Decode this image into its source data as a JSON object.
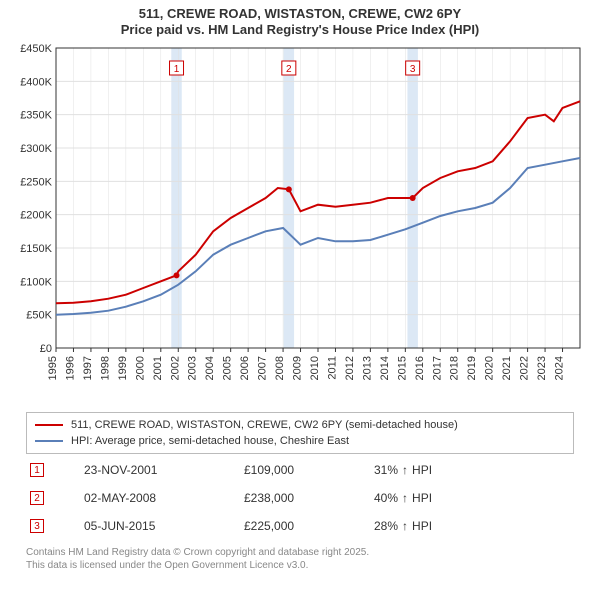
{
  "title_main": "511, CREWE ROAD, WISTASTON, CREWE, CW2 6PY",
  "title_sub": "Price paid vs. HM Land Registry's House Price Index (HPI)",
  "chart": {
    "type": "line",
    "background_color": "#ffffff",
    "grid_color": "#e0e0e0",
    "axis_color": "#333333",
    "tick_fontsize": 11,
    "xlim": [
      1995,
      2025
    ],
    "ylim": [
      0,
      450000
    ],
    "ytick_step": 50000,
    "ytick_labels": [
      "£0",
      "£50K",
      "£100K",
      "£150K",
      "£200K",
      "£250K",
      "£300K",
      "£350K",
      "£400K",
      "£450K"
    ],
    "xticks": [
      1995,
      1996,
      1997,
      1998,
      1999,
      2000,
      2001,
      2002,
      2003,
      2004,
      2005,
      2006,
      2007,
      2008,
      2009,
      2010,
      2011,
      2012,
      2013,
      2014,
      2015,
      2016,
      2017,
      2018,
      2019,
      2020,
      2021,
      2022,
      2023,
      2024
    ],
    "sale_band_color": "#dce8f5",
    "sale_bands": [
      2001.9,
      2008.33,
      2015.42
    ],
    "series": [
      {
        "name": "subject",
        "color": "#cc0000",
        "line_width": 2,
        "points": [
          [
            1995,
            67000
          ],
          [
            1996,
            68000
          ],
          [
            1997,
            70000
          ],
          [
            1998,
            74000
          ],
          [
            1999,
            80000
          ],
          [
            2000,
            90000
          ],
          [
            2001,
            100000
          ],
          [
            2001.9,
            109000
          ],
          [
            2002,
            115000
          ],
          [
            2003,
            140000
          ],
          [
            2004,
            175000
          ],
          [
            2005,
            195000
          ],
          [
            2006,
            210000
          ],
          [
            2007,
            225000
          ],
          [
            2007.7,
            240000
          ],
          [
            2008.33,
            238000
          ],
          [
            2008.8,
            215000
          ],
          [
            2009,
            205000
          ],
          [
            2010,
            215000
          ],
          [
            2011,
            212000
          ],
          [
            2012,
            215000
          ],
          [
            2013,
            218000
          ],
          [
            2014,
            225000
          ],
          [
            2015,
            225000
          ],
          [
            2015.42,
            225000
          ],
          [
            2016,
            240000
          ],
          [
            2017,
            255000
          ],
          [
            2018,
            265000
          ],
          [
            2019,
            270000
          ],
          [
            2020,
            280000
          ],
          [
            2021,
            310000
          ],
          [
            2022,
            345000
          ],
          [
            2023,
            350000
          ],
          [
            2023.5,
            340000
          ],
          [
            2024,
            360000
          ],
          [
            2025,
            370000
          ]
        ]
      },
      {
        "name": "hpi",
        "color": "#5a7fb8",
        "line_width": 2,
        "points": [
          [
            1995,
            50000
          ],
          [
            1996,
            51000
          ],
          [
            1997,
            53000
          ],
          [
            1998,
            56000
          ],
          [
            1999,
            62000
          ],
          [
            2000,
            70000
          ],
          [
            2001,
            80000
          ],
          [
            2002,
            95000
          ],
          [
            2003,
            115000
          ],
          [
            2004,
            140000
          ],
          [
            2005,
            155000
          ],
          [
            2006,
            165000
          ],
          [
            2007,
            175000
          ],
          [
            2008,
            180000
          ],
          [
            2008.8,
            160000
          ],
          [
            2009,
            155000
          ],
          [
            2010,
            165000
          ],
          [
            2011,
            160000
          ],
          [
            2012,
            160000
          ],
          [
            2013,
            162000
          ],
          [
            2014,
            170000
          ],
          [
            2015,
            178000
          ],
          [
            2016,
            188000
          ],
          [
            2017,
            198000
          ],
          [
            2018,
            205000
          ],
          [
            2019,
            210000
          ],
          [
            2020,
            218000
          ],
          [
            2021,
            240000
          ],
          [
            2022,
            270000
          ],
          [
            2023,
            275000
          ],
          [
            2024,
            280000
          ],
          [
            2025,
            285000
          ]
        ]
      }
    ],
    "markers": [
      {
        "n": "1",
        "x": 2001.9,
        "y": 109000
      },
      {
        "n": "2",
        "x": 2008.33,
        "y": 238000
      },
      {
        "n": "3",
        "x": 2015.42,
        "y": 225000
      }
    ]
  },
  "legend": {
    "items": [
      {
        "color": "#cc0000",
        "label": "511, CREWE ROAD, WISTASTON, CREWE, CW2 6PY (semi-detached house)"
      },
      {
        "color": "#5a7fb8",
        "label": "HPI: Average price, semi-detached house, Cheshire East"
      }
    ]
  },
  "sales": [
    {
      "n": "1",
      "date": "23-NOV-2001",
      "price": "£109,000",
      "delta": "31%",
      "arrow": "↑",
      "suffix": "HPI"
    },
    {
      "n": "2",
      "date": "02-MAY-2008",
      "price": "£238,000",
      "delta": "40%",
      "arrow": "↑",
      "suffix": "HPI"
    },
    {
      "n": "3",
      "date": "05-JUN-2015",
      "price": "£225,000",
      "delta": "28%",
      "arrow": "↑",
      "suffix": "HPI"
    }
  ],
  "footer_line1": "Contains HM Land Registry data © Crown copyright and database right 2025.",
  "footer_line2": "This data is licensed under the Open Government Licence v3.0."
}
